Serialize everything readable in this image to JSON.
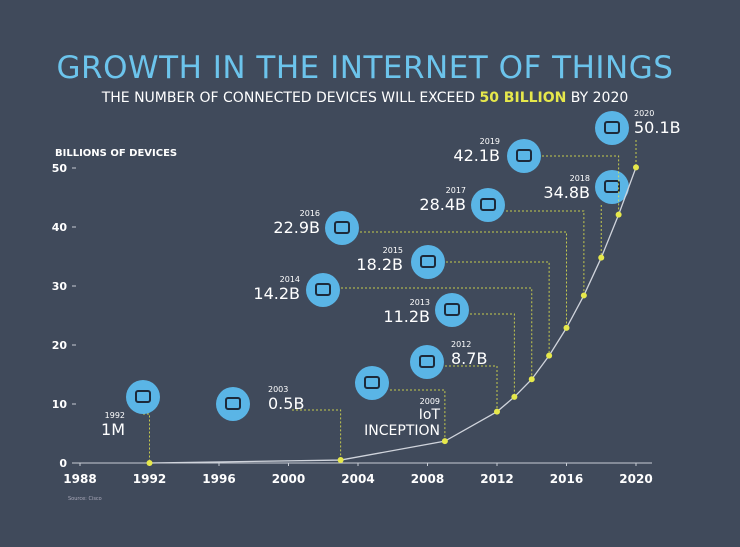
{
  "chart_data": {
    "type": "line",
    "title": "GROWTH IN THE INTERNET OF THINGS",
    "subtitle": [
      "THE NUMBER OF CONNECTED DEVICES WILL EXCEED ",
      "50 BILLION",
      " BY 2020"
    ],
    "y_label": "BILLIONS OF DEVICES",
    "source": "Source: Cisco",
    "x": [
      1992,
      2003,
      2009,
      2012,
      2013,
      2014,
      2015,
      2016,
      2017,
      2018,
      2019,
      2020
    ],
    "values": [
      0.001,
      0.5,
      3.7,
      8.7,
      11.2,
      14.2,
      18.2,
      22.9,
      28.4,
      34.8,
      42.1,
      50.1
    ],
    "value_labels": [
      "1M",
      "0.5B",
      null,
      "8.7B",
      "11.2B",
      "14.2B",
      "18.2B",
      "22.9B",
      "28.4B",
      "34.8B",
      "42.1B",
      "50.1B"
    ],
    "inception_label": [
      "IoT",
      "INCEPTION"
    ],
    "color": "#e6e84b",
    "xlim": [
      1988,
      2020
    ],
    "xticks": [
      1988,
      1992,
      1996,
      2000,
      2004,
      2008,
      2012,
      2016,
      2020
    ],
    "ylim": [
      0,
      50
    ],
    "yticks": [
      0,
      10,
      20,
      30,
      40,
      50
    ]
  }
}
